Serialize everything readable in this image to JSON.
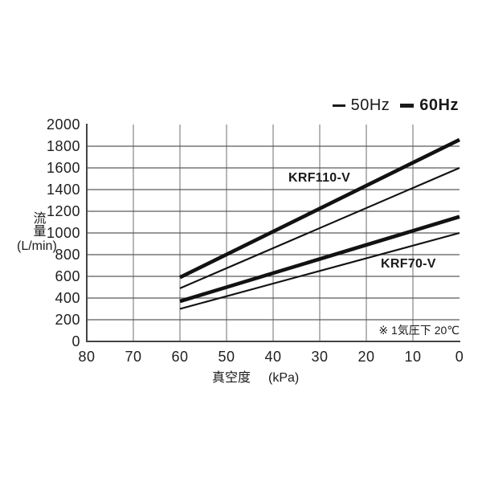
{
  "legend": {
    "items": [
      {
        "label": "50Hz",
        "style": "thin"
      },
      {
        "label": "60Hz",
        "style": "thick"
      }
    ]
  },
  "chart_data": {
    "type": "line",
    "title": "",
    "xlabel_main": "真空度",
    "xlabel_unit": "(kPa)",
    "ylabel_main": "流量",
    "ylabel_unit": "(L/min)",
    "x_axis": {
      "label": "真空度 (kPa)",
      "ticks": [
        80,
        70,
        60,
        50,
        40,
        30,
        20,
        10,
        0
      ],
      "range": [
        80,
        0
      ],
      "reversed": true
    },
    "y_axis": {
      "label": "流量 (L/min)",
      "ticks": [
        0,
        200,
        400,
        600,
        800,
        1000,
        1200,
        1400,
        1600,
        1800,
        2000
      ],
      "range": [
        0,
        2000
      ]
    },
    "grid": true,
    "legend_position": "top-right",
    "series": [
      {
        "name": "KRF110-V 60Hz",
        "model": "KRF110-V",
        "freq": "60Hz",
        "style": "thick",
        "points": [
          [
            60,
            590
          ],
          [
            0,
            1860
          ]
        ]
      },
      {
        "name": "KRF110-V 50Hz",
        "model": "KRF110-V",
        "freq": "50Hz",
        "style": "thin",
        "points": [
          [
            60,
            490
          ],
          [
            0,
            1600
          ]
        ]
      },
      {
        "name": "KRF70-V 60Hz",
        "model": "KRF70-V",
        "freq": "60Hz",
        "style": "thick",
        "points": [
          [
            60,
            370
          ],
          [
            0,
            1150
          ]
        ]
      },
      {
        "name": "KRF70-V 50Hz",
        "model": "KRF70-V",
        "freq": "50Hz",
        "style": "thin",
        "points": [
          [
            60,
            300
          ],
          [
            0,
            1000
          ]
        ]
      }
    ],
    "annotations": [
      {
        "text": "KRF110-V"
      },
      {
        "text": "KRF70-V"
      },
      {
        "text": "※ 1気圧下 20℃"
      }
    ]
  },
  "colors": {
    "line": "#121212",
    "axis": "#444444",
    "grid_horizontal": "#5a5a5a",
    "grid_vertical": "#8f8f8f",
    "text": "#1f1f1f",
    "background": "#ffffff"
  }
}
